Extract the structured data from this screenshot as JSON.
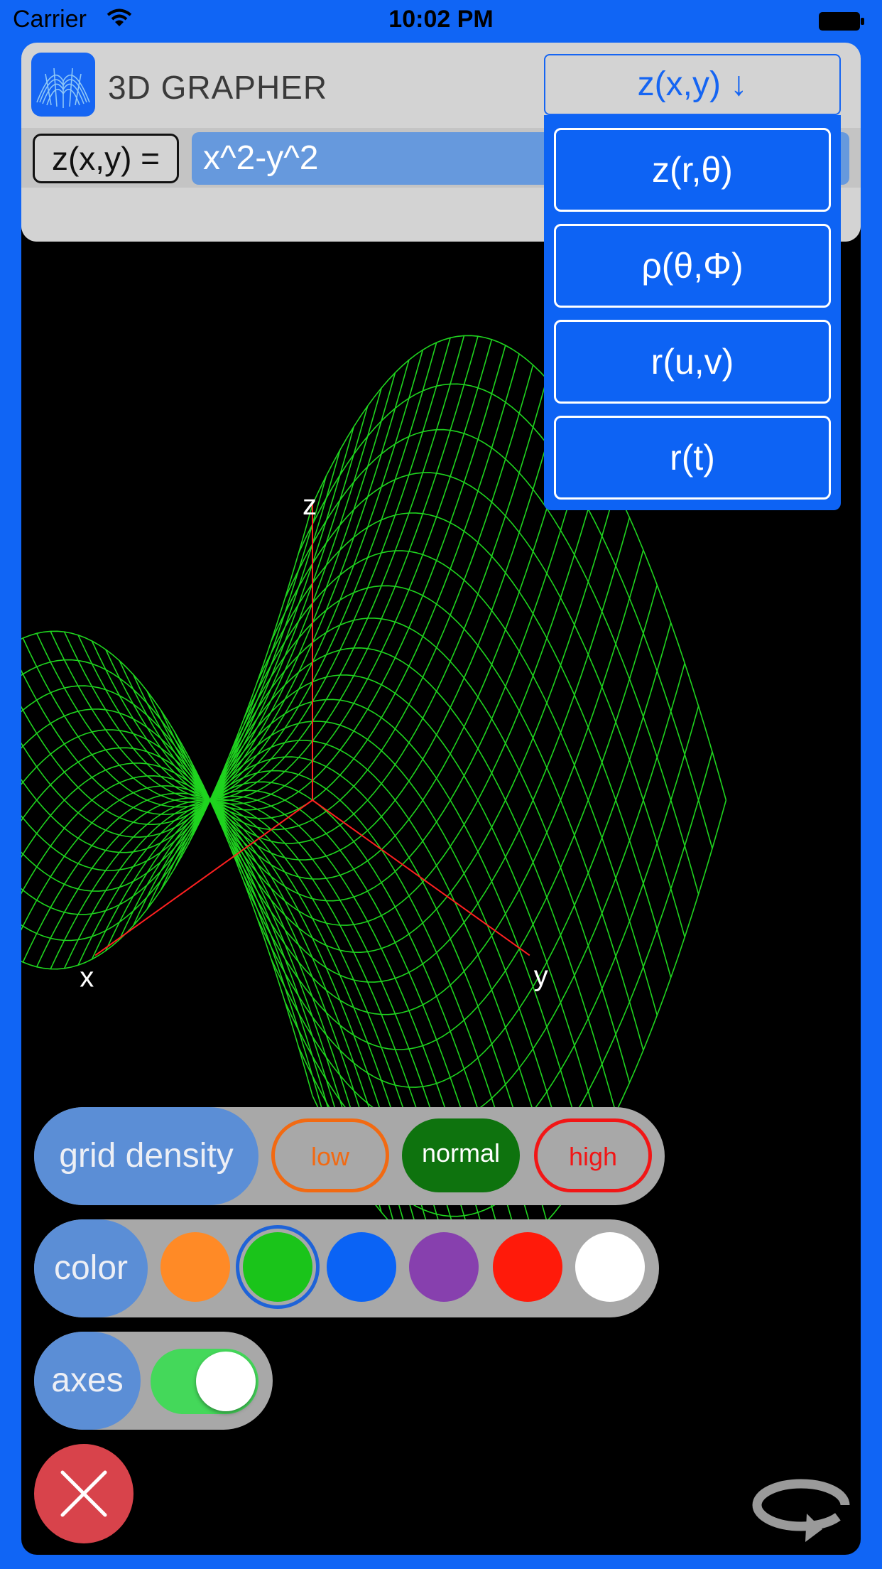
{
  "status_bar": {
    "carrier": "Carrier",
    "time": "10:02 PM"
  },
  "app": {
    "title": "3D GRAPHER",
    "icon": "saddle-surface-icon"
  },
  "equation": {
    "label": "z(x,y) =",
    "value": "x^2-y^2"
  },
  "mode_dropdown": {
    "selected": "z(x,y) ↓",
    "options": [
      "z(r,θ)",
      "ρ(θ,Φ)",
      "r(u,v)",
      "r(t)"
    ]
  },
  "plot": {
    "axis_labels": {
      "x": "x",
      "y": "y",
      "z": "z"
    },
    "surface_color": "#1FD41F",
    "axis_color": "#FF2020"
  },
  "grid_density": {
    "label": "grid density",
    "options": [
      "low",
      "normal",
      "high"
    ],
    "selected": "normal"
  },
  "color": {
    "label": "color",
    "swatches": [
      "#FF8A26",
      "#1AC41A",
      "#0A63F5",
      "#8740AE",
      "#FF1A0A",
      "#FFFFFF"
    ],
    "selected_index": 1
  },
  "axes": {
    "label": "axes",
    "enabled": true
  },
  "buttons": {
    "close": "close-icon",
    "rotate": "rotate-icon"
  }
}
